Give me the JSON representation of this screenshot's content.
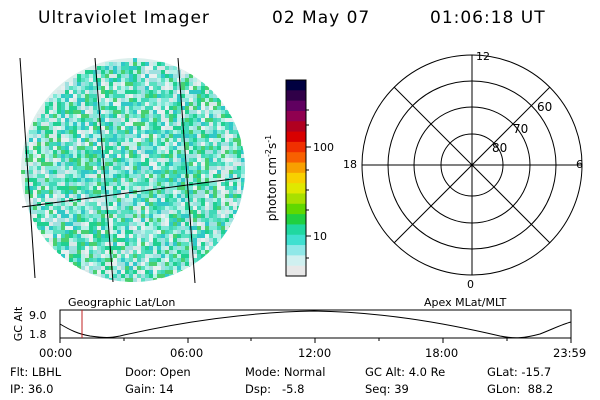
{
  "header": {
    "title": "Ultraviolet Imager",
    "date": "02 May 07",
    "time": "01:06:18 UT"
  },
  "colorbar": {
    "unit_label": "photon cm-2s-1",
    "ticks": [
      "100",
      "10"
    ],
    "colors": [
      "#000040",
      "#300048",
      "#600060",
      "#900050",
      "#b00020",
      "#d80000",
      "#f03000",
      "#f86000",
      "#f8a000",
      "#f8d000",
      "#e0e800",
      "#a8e000",
      "#60d800",
      "#20d040",
      "#20d8a0",
      "#40e0d0",
      "#90e8e8",
      "#d0f0f0",
      "#e8e8e8"
    ]
  },
  "polar": {
    "mlt_labels": {
      "top": "12",
      "left": "18",
      "right": "6",
      "bottom": "0"
    },
    "lat_labels": [
      "60",
      "70",
      "80"
    ]
  },
  "timeline": {
    "left_title": "Geographic Lat/Lon",
    "right_title": "Apex MLat/MLT",
    "axis_label": "GC Alt",
    "y_ticks": [
      "9.0",
      "1.8"
    ],
    "x_ticks": [
      "00:00",
      "06:00",
      "12:00",
      "18:00",
      "23:59"
    ]
  },
  "footer": {
    "flt": "Flt: LBHL",
    "door": "Door: Open",
    "mode": "Mode: Normal",
    "gc_alt": "GC Alt: 4.0 Re",
    "glat": "GLat: -15.7",
    "ip": "IP: 36.0",
    "gain": "Gain: 14",
    "dsp": "Dsp:   -5.8",
    "seq": "Seq: 39",
    "glon": "GLon:  88.2"
  }
}
